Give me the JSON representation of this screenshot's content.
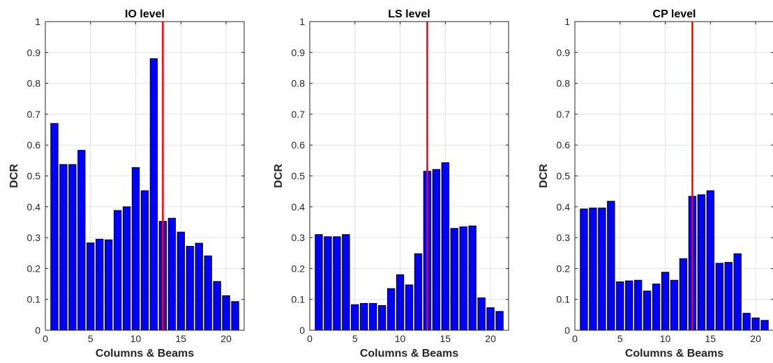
{
  "chart_data": [
    {
      "type": "bar",
      "title": "IO level",
      "xlabel": "Columns & Beams",
      "ylabel": "DCR",
      "xlim": [
        0,
        22
      ],
      "ylim": [
        0,
        1
      ],
      "xticks": [
        0,
        5,
        10,
        15,
        20
      ],
      "yticks": [
        0,
        0.1,
        0.2,
        0.3,
        0.4,
        0.5,
        0.6,
        0.7,
        0.8,
        0.9,
        1
      ],
      "grid": true,
      "x": [
        1,
        2,
        3,
        4,
        5,
        6,
        7,
        8,
        9,
        10,
        11,
        12,
        13,
        14,
        15,
        16,
        17,
        18,
        19,
        20,
        21
      ],
      "values": [
        0.67,
        0.537,
        0.537,
        0.583,
        0.283,
        0.295,
        0.293,
        0.388,
        0.4,
        0.527,
        0.452,
        0.88,
        0.353,
        0.363,
        0.318,
        0.272,
        0.282,
        0.241,
        0.158,
        0.112,
        0.093
      ],
      "bar_color": "#0000ff",
      "vline": {
        "x": 13,
        "color": "#ff0000"
      }
    },
    {
      "type": "bar",
      "title": "LS level",
      "xlabel": "Columns & Beams",
      "ylabel": "DCR",
      "xlim": [
        0,
        22
      ],
      "ylim": [
        0,
        1
      ],
      "xticks": [
        0,
        5,
        10,
        15,
        20
      ],
      "yticks": [
        0,
        0.1,
        0.2,
        0.3,
        0.4,
        0.5,
        0.6,
        0.7,
        0.8,
        0.9,
        1
      ],
      "grid": true,
      "x": [
        1,
        2,
        3,
        4,
        5,
        6,
        7,
        8,
        9,
        10,
        11,
        12,
        13,
        14,
        15,
        16,
        17,
        18,
        19,
        20,
        21
      ],
      "values": [
        0.31,
        0.303,
        0.303,
        0.31,
        0.083,
        0.087,
        0.087,
        0.08,
        0.135,
        0.18,
        0.147,
        0.248,
        0.515,
        0.521,
        0.543,
        0.33,
        0.335,
        0.338,
        0.105,
        0.073,
        0.061
      ],
      "bar_color": "#0000ff",
      "vline": {
        "x": 13,
        "color": "#ff0000"
      }
    },
    {
      "type": "bar",
      "title": "CP level",
      "xlabel": "Columns & Beams",
      "ylabel": "DCR",
      "xlim": [
        0,
        22
      ],
      "ylim": [
        0,
        1
      ],
      "xticks": [
        0,
        5,
        10,
        15,
        20
      ],
      "yticks": [
        0,
        0.1,
        0.2,
        0.3,
        0.4,
        0.5,
        0.6,
        0.7,
        0.8,
        0.9,
        1
      ],
      "grid": true,
      "x": [
        1,
        2,
        3,
        4,
        5,
        6,
        7,
        8,
        9,
        10,
        11,
        12,
        13,
        14,
        15,
        16,
        17,
        18,
        19,
        20,
        21
      ],
      "values": [
        0.393,
        0.396,
        0.396,
        0.418,
        0.157,
        0.16,
        0.162,
        0.127,
        0.15,
        0.188,
        0.162,
        0.232,
        0.434,
        0.439,
        0.452,
        0.217,
        0.22,
        0.248,
        0.055,
        0.04,
        0.032
      ],
      "bar_color": "#0000ff",
      "vline": {
        "x": 13,
        "color": "#ff0000"
      }
    }
  ]
}
